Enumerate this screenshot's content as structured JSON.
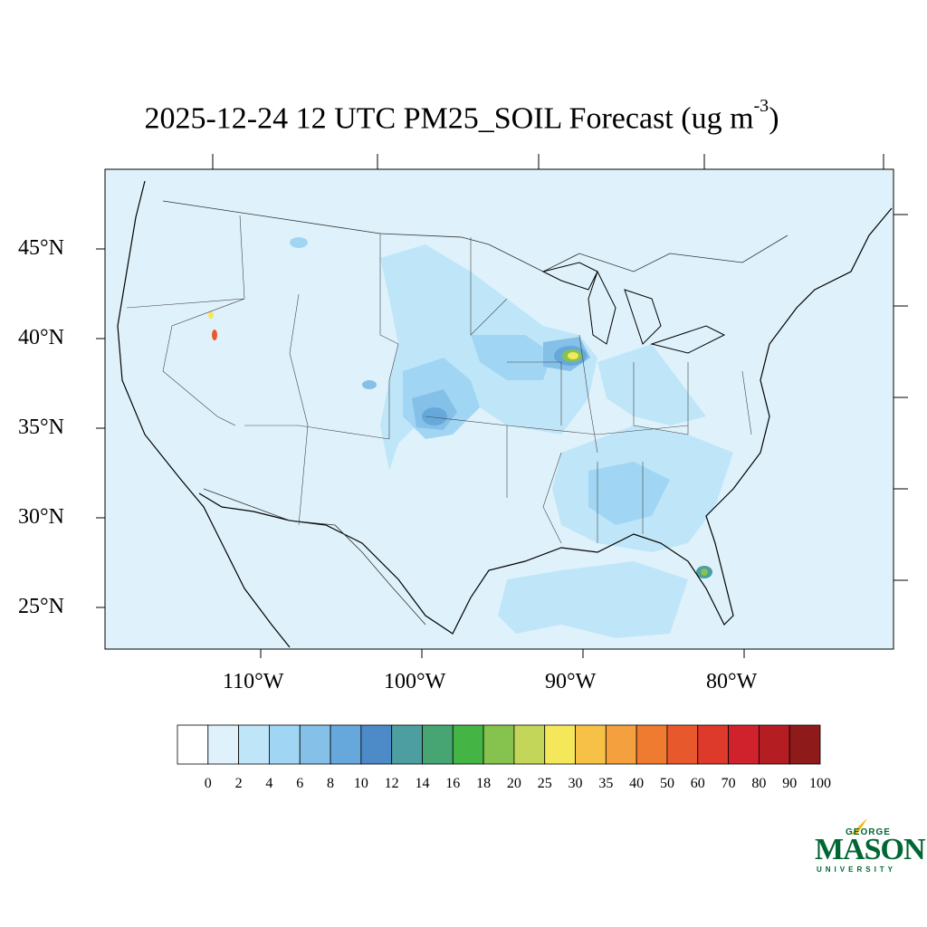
{
  "title": {
    "main": "2025-12-24 12 UTC PM25_SOIL Forecast (ug m",
    "exponent": "-3",
    "close": ")"
  },
  "map": {
    "background_color": "#dff2fb",
    "lat_labels": [
      "45°N",
      "40°N",
      "35°N",
      "30°N",
      "25°N"
    ],
    "lon_labels": [
      "110°W",
      "100°W",
      "90°W",
      "80°W"
    ]
  },
  "colorbar": {
    "labels": [
      "0",
      "2",
      "4",
      "6",
      "8",
      "10",
      "12",
      "14",
      "16",
      "18",
      "20",
      "25",
      "30",
      "35",
      "40",
      "50",
      "60",
      "70",
      "80",
      "90",
      "100"
    ],
    "colors": [
      "#ffffff",
      "#dff2fb",
      "#bfe6f8",
      "#a0d6f3",
      "#85c0e8",
      "#67a8dc",
      "#4d8ac8",
      "#4c9ea0",
      "#47a573",
      "#44b545",
      "#86c24e",
      "#c4d65a",
      "#f4e85a",
      "#f6c146",
      "#f5a03e",
      "#ef7b30",
      "#e8582d",
      "#dd3a2b",
      "#d0222c",
      "#b41d22",
      "#8f1a1a"
    ]
  },
  "logo": {
    "top": "GEORGE",
    "name": "MASON",
    "bottom": "UNIVERSITY"
  }
}
